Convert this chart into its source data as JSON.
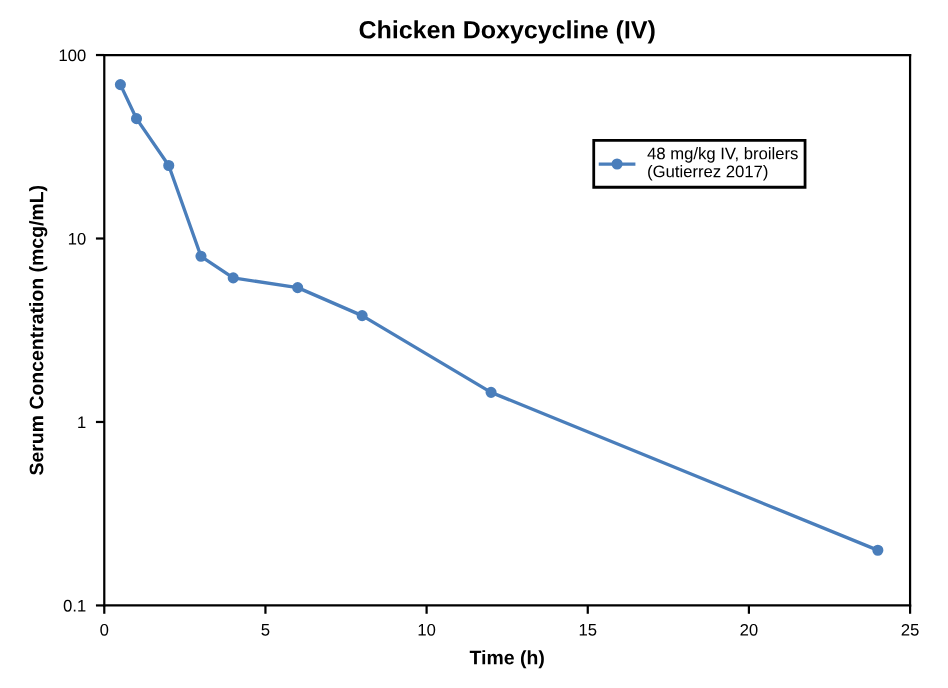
{
  "chart_data": {
    "type": "line",
    "title": "Chicken Doxycycline (IV)",
    "xlabel": "Time (h)",
    "ylabel": "Serum Concentration (mcg/mL)",
    "x": [
      0.5,
      1,
      2,
      3,
      4,
      6,
      8,
      12,
      24
    ],
    "series": [
      {
        "name": "48 mg/kg IV, broilers\n(Gutierrez 2017)",
        "color": "#4a7ebb",
        "values": [
          69,
          45,
          25,
          8.0,
          6.1,
          5.4,
          3.8,
          1.45,
          0.2
        ]
      }
    ],
    "xlim": [
      0,
      25
    ],
    "xticks": [
      0,
      5,
      10,
      15,
      20,
      25
    ],
    "ylim": [
      0.1,
      100
    ],
    "yticks": [
      0.1,
      1,
      10,
      100
    ],
    "log": true,
    "grid": false,
    "legend": "top right",
    "marker": "circle",
    "line_style": "solid"
  }
}
